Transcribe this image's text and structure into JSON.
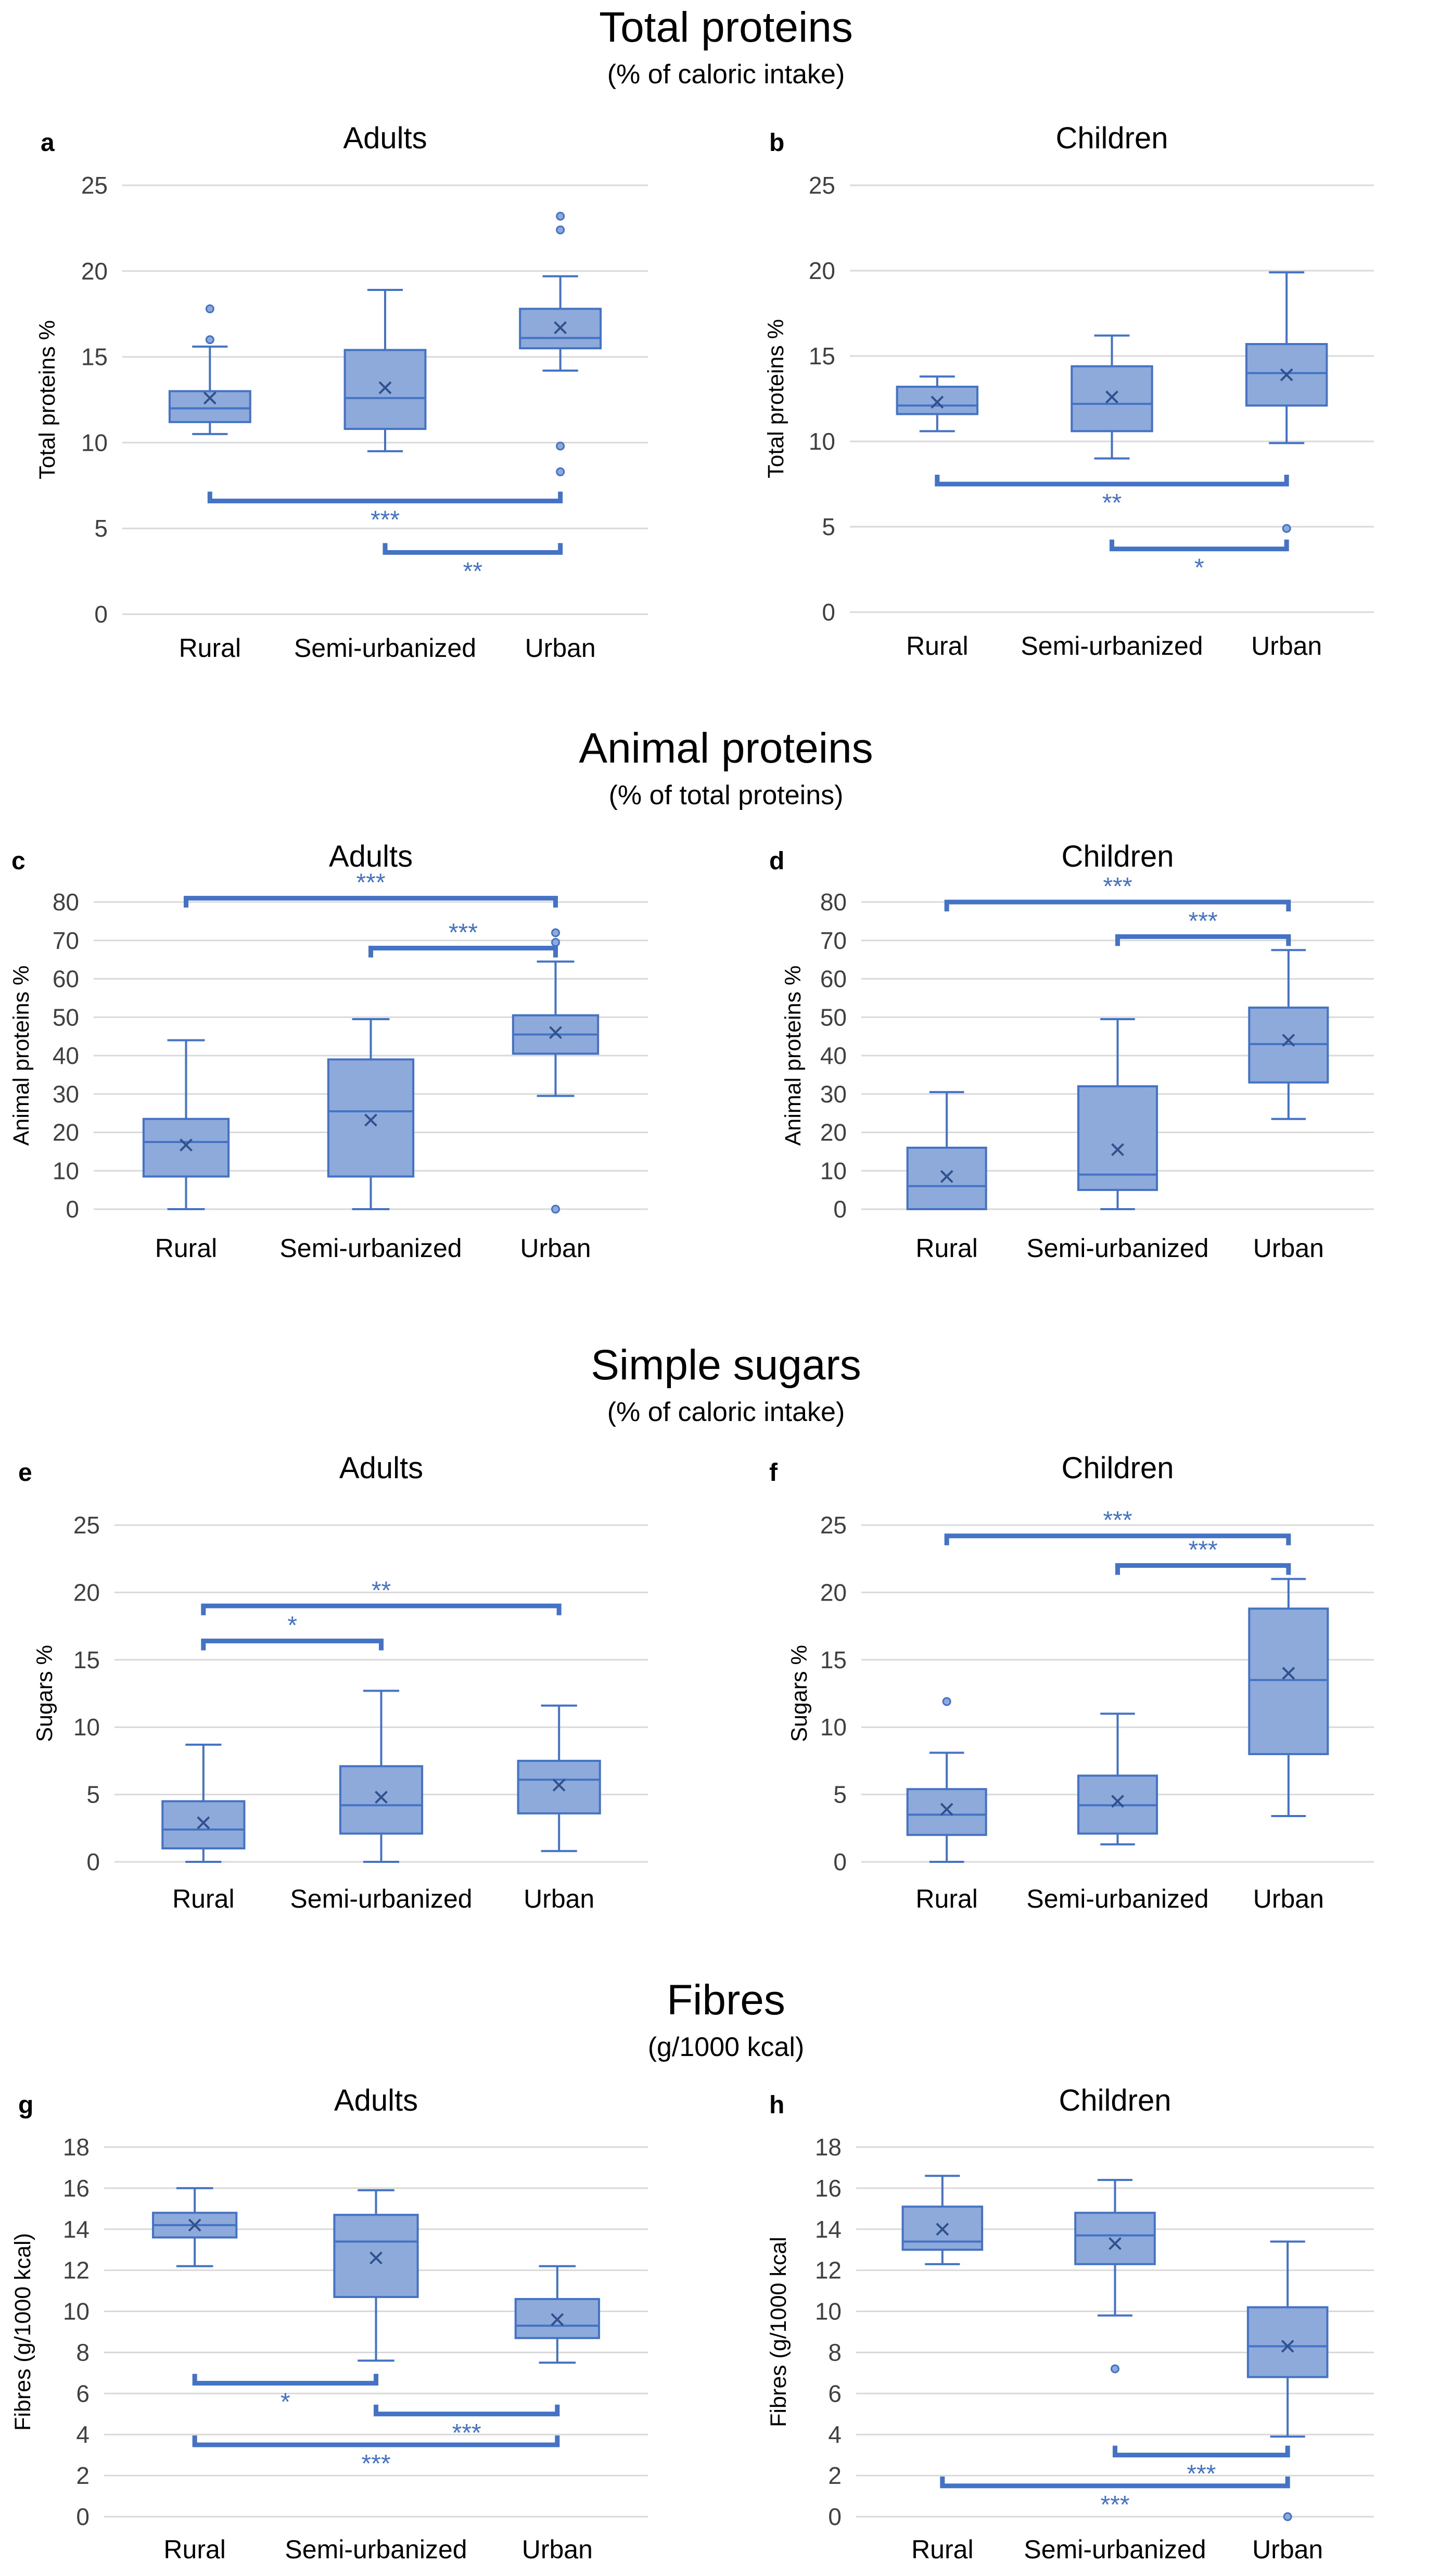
{
  "sections": [
    {
      "title": "Total proteins",
      "subtitle": "(% of caloric intake)"
    },
    {
      "title": "Animal proteins",
      "subtitle": "(% of total proteins)"
    },
    {
      "title": "Simple sugars",
      "subtitle": "(% of caloric intake)"
    },
    {
      "title": "Fibres",
      "subtitle": "(g/1000 kcal)"
    }
  ],
  "colors": {
    "box_fill": "#8eaadb",
    "box_stroke": "#4472c4",
    "bracket": "#4472c4",
    "grid": "#d9d9d9"
  },
  "chart_data": [
    {
      "type": "box",
      "letter": "a",
      "title": "Adults",
      "ylabel": "Total proteins %",
      "ylim": [
        0,
        25
      ],
      "yticks": [
        0,
        5,
        10,
        15,
        20,
        25
      ],
      "categories": [
        "Rural",
        "Semi-urbanized",
        "Urban"
      ],
      "boxes": [
        {
          "min": 10.5,
          "q1": 11.2,
          "median": 12.0,
          "q3": 13.0,
          "max": 15.6,
          "mean": 12.6,
          "outliers": [
            16.0,
            17.8
          ]
        },
        {
          "min": 9.5,
          "q1": 10.8,
          "median": 12.6,
          "q3": 15.4,
          "max": 18.9,
          "mean": 13.2,
          "outliers": []
        },
        {
          "min": 14.2,
          "q1": 15.5,
          "median": 16.1,
          "q3": 17.8,
          "max": 19.7,
          "mean": 16.7,
          "outliers": [
            22.4,
            23.2,
            9.8,
            8.3
          ]
        }
      ],
      "significance": [
        {
          "from": 0,
          "to": 2,
          "label": "***",
          "y": 6.6,
          "label_pos": "below"
        },
        {
          "from": 1,
          "to": 2,
          "label": "**",
          "y": 3.6,
          "label_pos": "below"
        }
      ]
    },
    {
      "type": "box",
      "letter": "b",
      "title": "Children",
      "ylabel": "Total proteins %",
      "ylim": [
        0,
        25
      ],
      "yticks": [
        0,
        5,
        10,
        15,
        20,
        25
      ],
      "categories": [
        "Rural",
        "Semi-urbanized",
        "Urban"
      ],
      "boxes": [
        {
          "min": 10.6,
          "q1": 11.6,
          "median": 12.1,
          "q3": 13.2,
          "max": 13.8,
          "mean": 12.3,
          "outliers": []
        },
        {
          "min": 9.0,
          "q1": 10.6,
          "median": 12.2,
          "q3": 14.4,
          "max": 16.2,
          "mean": 12.6,
          "outliers": []
        },
        {
          "min": 9.9,
          "q1": 12.1,
          "median": 14.0,
          "q3": 15.7,
          "max": 19.9,
          "mean": 13.9,
          "outliers": [
            4.9
          ]
        }
      ],
      "significance": [
        {
          "from": 0,
          "to": 2,
          "label": "**",
          "y": 7.5,
          "label_pos": "below"
        },
        {
          "from": 1,
          "to": 2,
          "label": "*",
          "y": 3.7,
          "label_pos": "below"
        }
      ]
    },
    {
      "type": "box",
      "letter": "c",
      "title": "Adults",
      "ylabel": "Animal proteins %",
      "ylim": [
        0,
        80
      ],
      "yticks": [
        0,
        10,
        20,
        30,
        40,
        50,
        60,
        70,
        80
      ],
      "categories": [
        "Rural",
        "Semi-urbanized",
        "Urban"
      ],
      "boxes": [
        {
          "min": 0,
          "q1": 8.5,
          "median": 17.5,
          "q3": 23.5,
          "max": 44.0,
          "mean": 16.7,
          "outliers": []
        },
        {
          "min": 0,
          "q1": 8.5,
          "median": 25.5,
          "q3": 39.0,
          "max": 49.5,
          "mean": 23.2,
          "outliers": []
        },
        {
          "min": 29.5,
          "q1": 40.5,
          "median": 45.5,
          "q3": 50.5,
          "max": 64.5,
          "mean": 46.0,
          "outliers": [
            69.5,
            72.0,
            0
          ]
        }
      ],
      "significance": [
        {
          "from": 0,
          "to": 2,
          "label": "***",
          "y": 81.0,
          "label_pos": "above"
        },
        {
          "from": 1,
          "to": 2,
          "label": "***",
          "y": 68.0,
          "label_pos": "above"
        }
      ]
    },
    {
      "type": "box",
      "letter": "d",
      "title": "Children",
      "ylabel": "Animal proteins %",
      "ylim": [
        0,
        80
      ],
      "yticks": [
        0,
        10,
        20,
        30,
        40,
        50,
        60,
        70,
        80
      ],
      "categories": [
        "Rural",
        "Semi-urbanized",
        "Urban"
      ],
      "boxes": [
        {
          "min": 0,
          "q1": 0,
          "median": 6.0,
          "q3": 16.0,
          "max": 30.5,
          "mean": 8.5,
          "outliers": []
        },
        {
          "min": 0,
          "q1": 5.0,
          "median": 9.0,
          "q3": 32.0,
          "max": 49.5,
          "mean": 15.5,
          "outliers": []
        },
        {
          "min": 23.5,
          "q1": 33.0,
          "median": 43.0,
          "q3": 52.5,
          "max": 67.5,
          "mean": 44.0,
          "outliers": []
        }
      ],
      "significance": [
        {
          "from": 0,
          "to": 2,
          "label": "***",
          "y": 80.0,
          "label_pos": "above"
        },
        {
          "from": 1,
          "to": 2,
          "label": "***",
          "y": 71.0,
          "label_pos": "above"
        }
      ]
    },
    {
      "type": "box",
      "letter": "e",
      "title": "Adults",
      "ylabel": "Sugars %",
      "ylim": [
        0,
        25
      ],
      "yticks": [
        0,
        5,
        10,
        15,
        20,
        25
      ],
      "categories": [
        "Rural",
        "Semi-urbanized",
        "Urban"
      ],
      "boxes": [
        {
          "min": 0,
          "q1": 1.0,
          "median": 2.4,
          "q3": 4.5,
          "max": 8.7,
          "mean": 2.9,
          "outliers": []
        },
        {
          "min": 0,
          "q1": 2.1,
          "median": 4.2,
          "q3": 7.1,
          "max": 12.7,
          "mean": 4.8,
          "outliers": []
        },
        {
          "min": 0.8,
          "q1": 3.6,
          "median": 6.1,
          "q3": 7.5,
          "max": 11.6,
          "mean": 5.7,
          "outliers": []
        }
      ],
      "significance": [
        {
          "from": 0,
          "to": 2,
          "label": "**",
          "y": 19.0,
          "label_pos": "above"
        },
        {
          "from": 0,
          "to": 1,
          "label": "*",
          "y": 16.4,
          "label_pos": "above"
        }
      ]
    },
    {
      "type": "box",
      "letter": "f",
      "title": "Children",
      "ylabel": "Sugars %",
      "ylim": [
        0,
        25
      ],
      "yticks": [
        0,
        5,
        10,
        15,
        20,
        25
      ],
      "categories": [
        "Rural",
        "Semi-urbanized",
        "Urban"
      ],
      "boxes": [
        {
          "min": 0,
          "q1": 2.0,
          "median": 3.5,
          "q3": 5.4,
          "max": 8.1,
          "mean": 3.9,
          "outliers": [
            11.9
          ]
        },
        {
          "min": 1.3,
          "q1": 2.1,
          "median": 4.2,
          "q3": 6.4,
          "max": 11.0,
          "mean": 4.5,
          "outliers": []
        },
        {
          "min": 3.4,
          "q1": 8.0,
          "median": 13.5,
          "q3": 18.8,
          "max": 21.0,
          "mean": 14.0,
          "outliers": []
        }
      ],
      "significance": [
        {
          "from": 0,
          "to": 2,
          "label": "***",
          "y": 24.2,
          "label_pos": "above"
        },
        {
          "from": 1,
          "to": 2,
          "label": "***",
          "y": 22.0,
          "label_pos": "above"
        }
      ]
    },
    {
      "type": "box",
      "letter": "g",
      "title": "Adults",
      "ylabel": "Fibres (g/1000 kcal)",
      "ylim": [
        0,
        18
      ],
      "yticks": [
        0,
        2,
        4,
        6,
        8,
        10,
        12,
        14,
        16,
        18
      ],
      "categories": [
        "Rural",
        "Semi-urbanized",
        "Urban"
      ],
      "boxes": [
        {
          "min": 12.2,
          "q1": 13.6,
          "median": 14.2,
          "q3": 14.8,
          "max": 16.0,
          "mean": 14.2,
          "outliers": []
        },
        {
          "min": 7.6,
          "q1": 10.7,
          "median": 13.4,
          "q3": 14.7,
          "max": 15.9,
          "mean": 12.6,
          "outliers": []
        },
        {
          "min": 7.5,
          "q1": 8.7,
          "median": 9.3,
          "q3": 10.6,
          "max": 12.2,
          "mean": 9.6,
          "outliers": []
        }
      ],
      "significance": [
        {
          "from": 0,
          "to": 1,
          "label": "*",
          "y": 6.5,
          "label_pos": "below"
        },
        {
          "from": 1,
          "to": 2,
          "label": "***",
          "y": 5.0,
          "label_pos": "below"
        },
        {
          "from": 0,
          "to": 2,
          "label": "***",
          "y": 3.5,
          "label_pos": "below"
        }
      ]
    },
    {
      "type": "box",
      "letter": "h",
      "title": "Children",
      "ylabel": "Fibres (g/1000 kcal",
      "ylim": [
        0,
        18
      ],
      "yticks": [
        0,
        2,
        4,
        6,
        8,
        10,
        12,
        14,
        16,
        18
      ],
      "categories": [
        "Rural",
        "Semi-urbanized",
        "Urban"
      ],
      "boxes": [
        {
          "min": 12.3,
          "q1": 13.0,
          "median": 13.4,
          "q3": 15.1,
          "max": 16.6,
          "mean": 14.0,
          "outliers": []
        },
        {
          "min": 9.8,
          "q1": 12.3,
          "median": 13.7,
          "q3": 14.8,
          "max": 16.4,
          "mean": 13.3,
          "outliers": [
            7.2
          ]
        },
        {
          "min": 3.9,
          "q1": 6.8,
          "median": 8.3,
          "q3": 10.2,
          "max": 13.4,
          "mean": 8.3,
          "outliers": [
            0
          ]
        }
      ],
      "significance": [
        {
          "from": 1,
          "to": 2,
          "label": "***",
          "y": 3.0,
          "label_pos": "below"
        },
        {
          "from": 0,
          "to": 2,
          "label": "***",
          "y": 1.5,
          "label_pos": "below"
        }
      ]
    }
  ]
}
